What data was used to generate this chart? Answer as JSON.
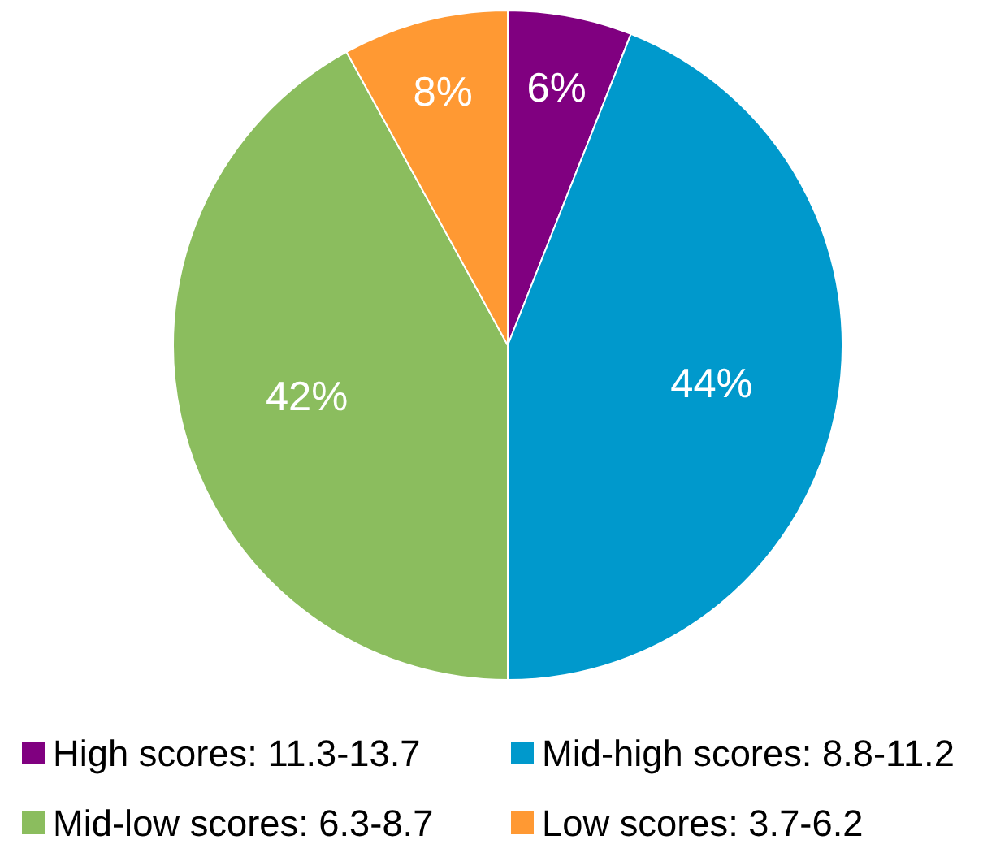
{
  "chart_data": {
    "type": "pie",
    "categories": [
      "High scores: 11.3-13.7",
      "Mid-high scores: 8.8-11.2",
      "Mid-low scores: 6.3-8.7",
      "Low scores: 3.7-6.2"
    ],
    "values": [
      6,
      44,
      42,
      8
    ],
    "colors": [
      "#800080",
      "#0099cc",
      "#8bbd5e",
      "#ff9933"
    ],
    "value_labels": [
      "6%",
      "44%",
      "42%",
      "8%"
    ],
    "legend": "bottom"
  }
}
